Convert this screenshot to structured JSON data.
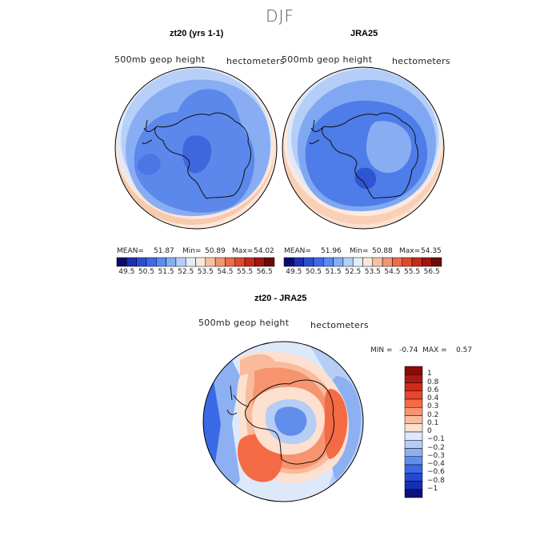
{
  "season": "DJF",
  "panels": [
    {
      "title": "zt20 (yrs 1-1)",
      "variable": "500mb geop height",
      "units": "hectometers",
      "mean_label": "MEAN=",
      "mean": "51.87",
      "min_label": "Min=",
      "min": "50.89",
      "max_label": "Max=",
      "max": "54.02"
    },
    {
      "title": "JRA25",
      "variable": "500mb geop height",
      "units": "hectometers",
      "mean_label": "MEAN=",
      "mean": "51.96",
      "min_label": "Min=",
      "min": "50.88",
      "max_label": "Max=",
      "max": "54.35"
    },
    {
      "title": "zt20 - JRA25",
      "variable": "500mb geop height",
      "units": "hectometers",
      "minmax_text": "MIN =   -0.74  MAX =    0.57"
    }
  ],
  "top_colorbar": {
    "ticks": [
      "49.5",
      "50.5",
      "51.5",
      "52.5",
      "53.5",
      "54.5",
      "55.5",
      "56.5"
    ],
    "colors": [
      "#0a0a6e",
      "#1b2fb0",
      "#2a4fd0",
      "#3d6ae8",
      "#5b8af2",
      "#86aef5",
      "#b4cff8",
      "#e2ecfb",
      "#fbe7da",
      "#f7c0a6",
      "#f29572",
      "#ea6c48",
      "#dc4a2a",
      "#c42a18",
      "#a01510",
      "#6e0a0a"
    ]
  },
  "diff_colorbar": {
    "ticks": [
      "1",
      "0.8",
      "0.6",
      "0.4",
      "0.3",
      "0.2",
      "0.1",
      "0",
      "−0.1",
      "−0.2",
      "−0.3",
      "−0.4",
      "−0.6",
      "−0.8",
      "−1"
    ],
    "colors": [
      "#8b0a0a",
      "#b01612",
      "#cf2a1a",
      "#e8452a",
      "#f46a45",
      "#f79470",
      "#fabb9c",
      "#fde0cf",
      "#dde8fa",
      "#b6cdf6",
      "#8cb0f2",
      "#618ded",
      "#3a6ae5",
      "#2548d3",
      "#1230b4",
      "#0a107e"
    ]
  },
  "colors": {
    "ocean_mid": "#7ea8f0",
    "interior": "#4a78e6",
    "ring_light": "#b6d0f8",
    "edge_warm": "#f7c9ad"
  }
}
